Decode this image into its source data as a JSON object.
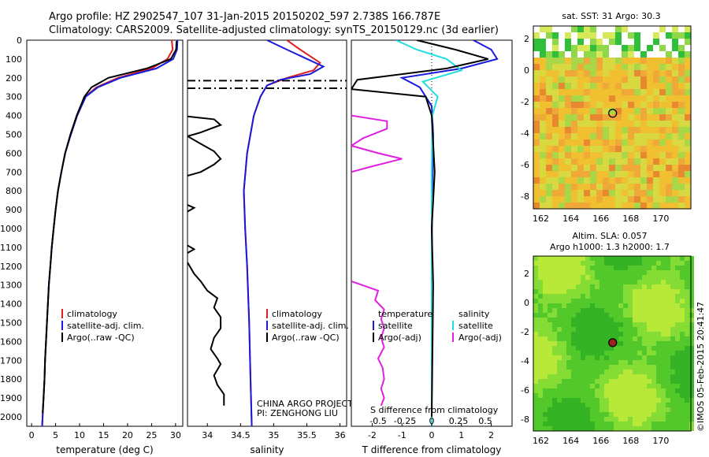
{
  "header": {
    "line1": "Argo profile: HZ 2902547_107 31-Jan-2015 20150202_597 2.738S 166.787E",
    "line2": "Climatology: CARS2009. Satellite-adjusted climatology: synTS_20150129.nc (3d earlier)"
  },
  "credit": {
    "line1": "CHINA ARGO PROJECT",
    "line2": "PI: ZENGHONG LIU"
  },
  "timestamp": "©IMOS 05-Feb-2015 20:41:47",
  "colors": {
    "climatology": "#e02020",
    "satellite": "#1a1adc",
    "argo": "#000000",
    "sat_salinity": "#22dde0",
    "argo_salinity_diff": "#e020e0"
  },
  "depth_axis": {
    "range": [
      0,
      2050
    ],
    "ticks": [
      0,
      100,
      200,
      300,
      400,
      500,
      600,
      700,
      800,
      900,
      1000,
      1100,
      1200,
      1300,
      1400,
      1500,
      1600,
      1700,
      1800,
      1900,
      2000
    ]
  },
  "chart_data": [
    {
      "type": "line",
      "id": "temperature",
      "xlabel": "temperature (deg C)",
      "xlim": [
        -1,
        31.5
      ],
      "xticks": [
        0,
        5,
        10,
        15,
        20,
        25,
        30
      ],
      "legend": [
        "climatology",
        "satellite-adj. clim.",
        "Argo(..raw -QC)"
      ],
      "series": [
        {
          "name": "climatology",
          "color": "#e02020",
          "points": [
            [
              29.2,
              0
            ],
            [
              29.4,
              50
            ],
            [
              28.3,
              100
            ],
            [
              25,
              150
            ],
            [
              18,
              200
            ],
            [
              13.5,
              250
            ],
            [
              11.2,
              300
            ],
            [
              9.5,
              400
            ],
            [
              8.2,
              500
            ],
            [
              7,
              600
            ],
            [
              6.2,
              700
            ],
            [
              5.5,
              800
            ],
            [
              5,
              900
            ],
            [
              4.6,
              1000
            ],
            [
              4.2,
              1100
            ],
            [
              3.9,
              1200
            ],
            [
              3.6,
              1300
            ],
            [
              3.4,
              1400
            ],
            [
              3.2,
              1500
            ],
            [
              3,
              1600
            ],
            [
              2.8,
              1700
            ],
            [
              2.7,
              1800
            ],
            [
              2.5,
              1900
            ],
            [
              2.3,
              2000
            ],
            [
              2.2,
              2050
            ]
          ]
        },
        {
          "name": "satellite-adj. clim.",
          "color": "#1a1adc",
          "points": [
            [
              30.4,
              0
            ],
            [
              30.3,
              50
            ],
            [
              29.5,
              100
            ],
            [
              26,
              150
            ],
            [
              18.5,
              200
            ],
            [
              13.8,
              250
            ],
            [
              11.3,
              300
            ],
            [
              9.5,
              400
            ],
            [
              8.2,
              500
            ],
            [
              7,
              600
            ],
            [
              6.2,
              700
            ],
            [
              5.5,
              800
            ],
            [
              5,
              900
            ],
            [
              4.6,
              1000
            ],
            [
              4.2,
              1100
            ],
            [
              3.9,
              1200
            ],
            [
              3.6,
              1300
            ],
            [
              3.4,
              1400
            ],
            [
              3.2,
              1500
            ],
            [
              3,
              1600
            ],
            [
              2.8,
              1700
            ],
            [
              2.7,
              1800
            ],
            [
              2.5,
              1900
            ],
            [
              2.3,
              2000
            ],
            [
              2.2,
              2050
            ]
          ]
        },
        {
          "name": "Argo(..raw -QC)",
          "color": "#000000",
          "points": [
            [
              30.2,
              5
            ],
            [
              30.1,
              50
            ],
            [
              29,
              100
            ],
            [
              24,
              150
            ],
            [
              16,
              200
            ],
            [
              12.5,
              250
            ],
            [
              11,
              300
            ],
            [
              9.4,
              400
            ],
            [
              8.1,
              500
            ],
            [
              7,
              600
            ],
            [
              6.2,
              700
            ],
            [
              5.5,
              800
            ],
            [
              5,
              900
            ],
            [
              4.6,
              1000
            ],
            [
              4.2,
              1100
            ],
            [
              3.9,
              1200
            ],
            [
              3.6,
              1300
            ],
            [
              3.4,
              1400
            ],
            [
              3.2,
              1500
            ],
            [
              3,
              1600
            ],
            [
              2.8,
              1700
            ],
            [
              2.7,
              1800
            ],
            [
              2.5,
              1900
            ],
            [
              2.3,
              1980
            ]
          ]
        }
      ]
    },
    {
      "type": "line",
      "id": "salinity",
      "xlabel": "salinity",
      "xlim": [
        33.7,
        36.1
      ],
      "xticks": [
        34,
        34.5,
        35,
        35.5,
        36
      ],
      "legend": [
        "climatology",
        "satellite-adj. clim.",
        "Argo(..raw -QC)"
      ],
      "series": [
        {
          "name": "climatology",
          "color": "#e02020",
          "points": [
            [
              35.2,
              0
            ],
            [
              35.4,
              50
            ],
            [
              35.7,
              120
            ],
            [
              35.6,
              160
            ],
            [
              35.2,
              200
            ],
            [
              34.9,
              240
            ],
            [
              34.8,
              300
            ],
            [
              34.7,
              400
            ],
            [
              34.6,
              600
            ],
            [
              34.55,
              800
            ],
            [
              34.57,
              1000
            ],
            [
              34.6,
              1200
            ],
            [
              34.63,
              1500
            ],
            [
              34.65,
              1800
            ],
            [
              34.67,
              2050
            ]
          ]
        },
        {
          "name": "satellite-adj. clim.",
          "color": "#1a1adc",
          "points": [
            [
              34.9,
              0
            ],
            [
              35.2,
              50
            ],
            [
              35.75,
              140
            ],
            [
              35.55,
              180
            ],
            [
              35.1,
              210
            ],
            [
              34.9,
              240
            ],
            [
              34.8,
              300
            ],
            [
              34.7,
              400
            ],
            [
              34.6,
              600
            ],
            [
              34.55,
              800
            ],
            [
              34.57,
              1000
            ],
            [
              34.6,
              1200
            ],
            [
              34.63,
              1500
            ],
            [
              34.65,
              1800
            ],
            [
              34.67,
              2050
            ]
          ]
        },
        {
          "name": "Argo(..raw -QC)",
          "color": "#000000",
          "dash": "10,4,2,4",
          "points": [
            [
              33.7,
              215
            ],
            [
              36.1,
              215
            ]
          ]
        },
        {
          "name": "Argo(..raw -QC)",
          "color": "#000000",
          "dash": "10,4,2,4",
          "points": [
            [
              33.7,
              255
            ],
            [
              36.1,
              255
            ]
          ]
        },
        {
          "name": "Argo(..raw -QC)",
          "color": "#000000",
          "points": [
            [
              33.7,
              405
            ],
            [
              34.1,
              420
            ],
            [
              34.2,
              450
            ],
            [
              33.9,
              490
            ],
            [
              33.7,
              510
            ],
            [
              33.9,
              550
            ],
            [
              34.1,
              590
            ],
            [
              34.2,
              630
            ],
            [
              34.1,
              660
            ],
            [
              33.9,
              700
            ],
            [
              33.7,
              720
            ]
          ]
        },
        {
          "name": "Argo(..raw -QC)",
          "color": "#000000",
          "points": [
            [
              33.7,
              875
            ],
            [
              33.8,
              890
            ],
            [
              33.7,
              910
            ]
          ]
        },
        {
          "name": "Argo(..raw -QC)",
          "color": "#000000",
          "points": [
            [
              33.7,
              1090
            ],
            [
              33.8,
              1110
            ],
            [
              33.7,
              1130
            ]
          ]
        },
        {
          "name": "Argo(..raw -QC)",
          "color": "#000000",
          "points": [
            [
              33.7,
              1180
            ],
            [
              33.8,
              1240
            ],
            [
              33.9,
              1280
            ],
            [
              34,
              1330
            ],
            [
              34.15,
              1370
            ],
            [
              34.1,
              1420
            ],
            [
              34.2,
              1470
            ],
            [
              34.2,
              1530
            ],
            [
              34.1,
              1580
            ],
            [
              34.05,
              1640
            ],
            [
              34.15,
              1690
            ],
            [
              34.2,
              1720
            ],
            [
              34.1,
              1780
            ],
            [
              34.15,
              1830
            ],
            [
              34.25,
              1880
            ],
            [
              34.25,
              1940
            ]
          ]
        }
      ]
    },
    {
      "type": "line",
      "id": "difference",
      "xlabel": "T difference from climatology",
      "xlim": [
        -2.7,
        2.7
      ],
      "xticks": [
        -2,
        -1,
        0,
        1,
        2
      ],
      "top_label": "S difference from climatology",
      "top_ticks": [
        "-0.5",
        "-0.25",
        "0",
        "0.25",
        "0.5"
      ],
      "legend": [
        "temperature",
        "satellite",
        "Argo(-adj)",
        "salinity",
        "satellite",
        "Argo(-adj)"
      ],
      "series": [
        {
          "name": "satellite",
          "color": "#1a1adc",
          "points": [
            [
              1.4,
              0
            ],
            [
              2,
              50
            ],
            [
              2.2,
              100
            ],
            [
              1,
              150
            ],
            [
              -1,
              200
            ],
            [
              -0.4,
              250
            ],
            [
              0,
              350
            ],
            [
              0.05,
              500
            ],
            [
              0.02,
              800
            ],
            [
              0,
              1200
            ],
            [
              0,
              2050
            ]
          ]
        },
        {
          "name": "salinity satellite",
          "color": "#22dde0",
          "points": [
            [
              -1.2,
              0
            ],
            [
              -0.5,
              50
            ],
            [
              0.5,
              100
            ],
            [
              1,
              160
            ],
            [
              -0.3,
              220
            ],
            [
              0.2,
              300
            ],
            [
              0.02,
              400
            ],
            [
              0,
              700
            ],
            [
              0,
              2050
            ]
          ]
        },
        {
          "name": "Argo(-adj)",
          "color": "#000000",
          "points": [
            [
              -0.5,
              0
            ],
            [
              0.8,
              50
            ],
            [
              1.9,
              100
            ],
            [
              0.5,
              150
            ],
            [
              -2.5,
              210
            ],
            [
              -2.7,
              260
            ],
            [
              -0.2,
              300
            ],
            [
              0,
              400
            ],
            [
              0.1,
              700
            ],
            [
              0,
              1000
            ],
            [
              0.05,
              1300
            ],
            [
              0,
              2000
            ]
          ]
        },
        {
          "name": "salinity Argo(-adj)",
          "color": "#e020e0",
          "points": [
            [
              -2.7,
              400
            ],
            [
              -1.5,
              430
            ],
            [
              -1.5,
              470
            ],
            [
              -2.3,
              520
            ],
            [
              -2.7,
              560
            ],
            [
              -1.8,
              600
            ],
            [
              -1.0,
              630
            ],
            [
              -2.0,
              670
            ],
            [
              -2.7,
              700
            ]
          ]
        },
        {
          "name": "salinity Argo(-adj)",
          "color": "#e020e0",
          "points": [
            [
              -2.7,
              1280
            ],
            [
              -1.8,
              1330
            ],
            [
              -1.9,
              1380
            ],
            [
              -1.6,
              1430
            ],
            [
              -1.7,
              1480
            ],
            [
              -1.6,
              1530
            ],
            [
              -1.7,
              1580
            ],
            [
              -1.6,
              1630
            ],
            [
              -1.8,
              1690
            ],
            [
              -1.65,
              1740
            ],
            [
              -1.6,
              1800
            ],
            [
              -1.7,
              1850
            ],
            [
              -1.6,
              1900
            ],
            [
              -1.7,
              1940
            ]
          ]
        }
      ]
    },
    {
      "type": "heatmap",
      "id": "sst_map",
      "title": "sat. SST: 31  Argo: 30.3",
      "xticks": [
        162,
        164,
        166,
        168,
        170
      ],
      "yticks": [
        2,
        0,
        -2,
        -4,
        -6,
        -8
      ],
      "xlim": [
        161.5,
        172
      ],
      "ylim": [
        -8.8,
        2.8
      ],
      "marker": [
        166.787,
        -2.738
      ]
    },
    {
      "type": "heatmap",
      "id": "sla_map",
      "title_line1": "Altim. SLA: 0.057",
      "title_line2": "Argo h1000: 1.3  h2000: 1.7",
      "xticks": [
        162,
        164,
        166,
        168,
        170
      ],
      "yticks": [
        2,
        0,
        -2,
        -4,
        -6,
        -8
      ],
      "xlim": [
        161.5,
        172
      ],
      "ylim": [
        -8.8,
        3.2
      ],
      "marker": [
        166.787,
        -2.738
      ]
    }
  ]
}
